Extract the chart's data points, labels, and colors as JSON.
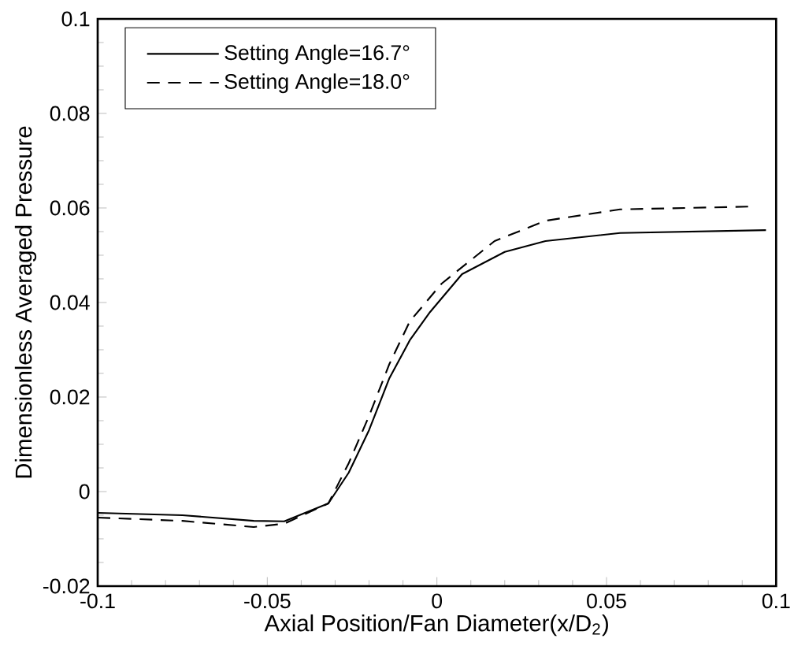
{
  "chart_data": {
    "type": "line",
    "xlabel": "Axial Position/Fan Diameter(x/D$_{2}$)",
    "ylabel": "Dimensionless Averaged Pressure",
    "xlim": [
      -0.1,
      0.1
    ],
    "ylim": [
      -0.02,
      0.1
    ],
    "xticks": [
      -0.1,
      -0.05,
      0,
      0.05,
      0.1
    ],
    "yticks": [
      -0.02,
      0,
      0.02,
      0.04,
      0.06,
      0.08,
      0.1
    ],
    "legend": "top left",
    "marker": "none",
    "series": [
      {
        "name": "Setting Angle=16.7°",
        "color": "#000000",
        "line_style": "solid",
        "x": [
          -0.1,
          -0.075,
          -0.054,
          -0.045,
          -0.032,
          -0.026,
          -0.02,
          -0.014,
          -0.008,
          -0.002,
          0.0074,
          0.02,
          0.032,
          0.054,
          0.097
        ],
        "values": [
          -0.0045,
          -0.005,
          -0.0062,
          -0.0063,
          -0.0025,
          0.004,
          0.013,
          0.024,
          0.032,
          0.038,
          0.046,
          0.0507,
          0.053,
          0.0547,
          0.0553
        ]
      },
      {
        "name": "Setting Angle=18.0°",
        "color": "#000000",
        "line_style": "dashed",
        "x": [
          -0.1,
          -0.075,
          -0.054,
          -0.045,
          -0.032,
          -0.026,
          -0.02,
          -0.014,
          -0.008,
          0.0014,
          0.017,
          0.032,
          0.054,
          0.093
        ],
        "values": [
          -0.0055,
          -0.0062,
          -0.0075,
          -0.0068,
          -0.0025,
          0.006,
          0.016,
          0.027,
          0.036,
          0.044,
          0.053,
          0.0573,
          0.0597,
          0.0603
        ]
      }
    ]
  }
}
